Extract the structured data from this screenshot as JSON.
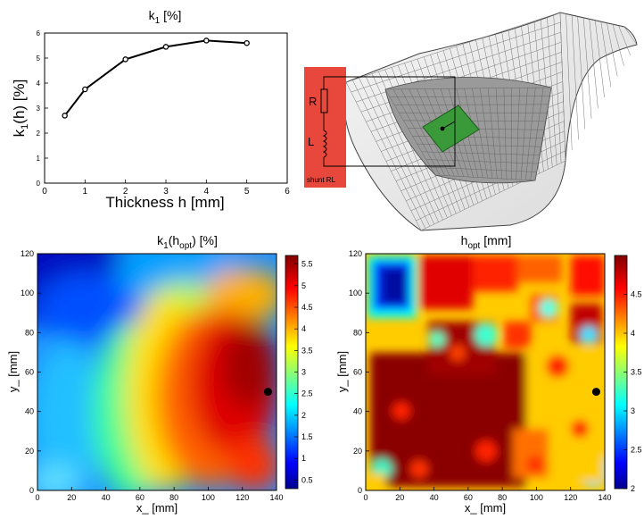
{
  "colors": {
    "shunt_box": "#e8473c",
    "patch": "#3a9a3a",
    "mesh": "#555555",
    "marker": "#000000"
  },
  "chart_data": [
    {
      "type": "line",
      "title_main": "k",
      "title_sub": "1",
      "title_unit": " [%]",
      "xlabel": "Thickness h [mm]",
      "ylabel": "k",
      "ylabel_sub": "1",
      "ylabel_rest": "(h) [%]",
      "xlim": [
        0,
        6
      ],
      "ylim": [
        0,
        6
      ],
      "xticks": [
        "0",
        "1",
        "2",
        "3",
        "4",
        "5",
        "6"
      ],
      "yticks": [
        "0",
        "1",
        "2",
        "3",
        "4",
        "5",
        "6"
      ],
      "x": [
        0.5,
        1,
        2,
        3,
        4,
        5
      ],
      "y": [
        2.7,
        3.75,
        4.95,
        5.45,
        5.7,
        5.6
      ],
      "grid": false
    },
    {
      "type": "heatmap",
      "title_main": "k",
      "title_sub": "1",
      "title_mid": "(h",
      "title_sub2": "opt",
      "title_unit": ") [%]",
      "xlabel": "x_ [mm]",
      "ylabel": "y_ [mm]",
      "xlim": [
        0,
        140
      ],
      "ylim": [
        0,
        120
      ],
      "xticks": [
        "0",
        "20",
        "40",
        "60",
        "80",
        "100",
        "120",
        "140"
      ],
      "yticks": [
        "0",
        "20",
        "40",
        "60",
        "80",
        "100",
        "120"
      ],
      "colorbar_ticks": [
        "0.5",
        "1",
        "1.5",
        "2",
        "2.5",
        "3",
        "3.5",
        "4",
        "4.5",
        "5",
        "5.5"
      ],
      "colorbar_range": [
        0.3,
        5.7
      ],
      "marker": [
        135,
        50
      ],
      "colormap": "jet"
    },
    {
      "type": "heatmap",
      "title_main": "h",
      "title_sub": "opt",
      "title_unit": " [mm]",
      "xlabel": "x_ [mm]",
      "ylabel": "y_ [mm]",
      "xlim": [
        0,
        140
      ],
      "ylim": [
        0,
        120
      ],
      "xticks": [
        "0",
        "20",
        "40",
        "60",
        "80",
        "100",
        "120",
        "140"
      ],
      "yticks": [
        "0",
        "20",
        "40",
        "60",
        "80",
        "100",
        "120"
      ],
      "colorbar_ticks": [
        "2",
        "2.5",
        "3",
        "3.5",
        "4",
        "4.5"
      ],
      "colorbar_range": [
        2,
        5
      ],
      "marker": [
        135,
        50
      ],
      "colormap": "jet"
    }
  ],
  "diagram": {
    "resistor_label": "R",
    "inductor_label": "L",
    "shunt_label": "shunt RL"
  }
}
